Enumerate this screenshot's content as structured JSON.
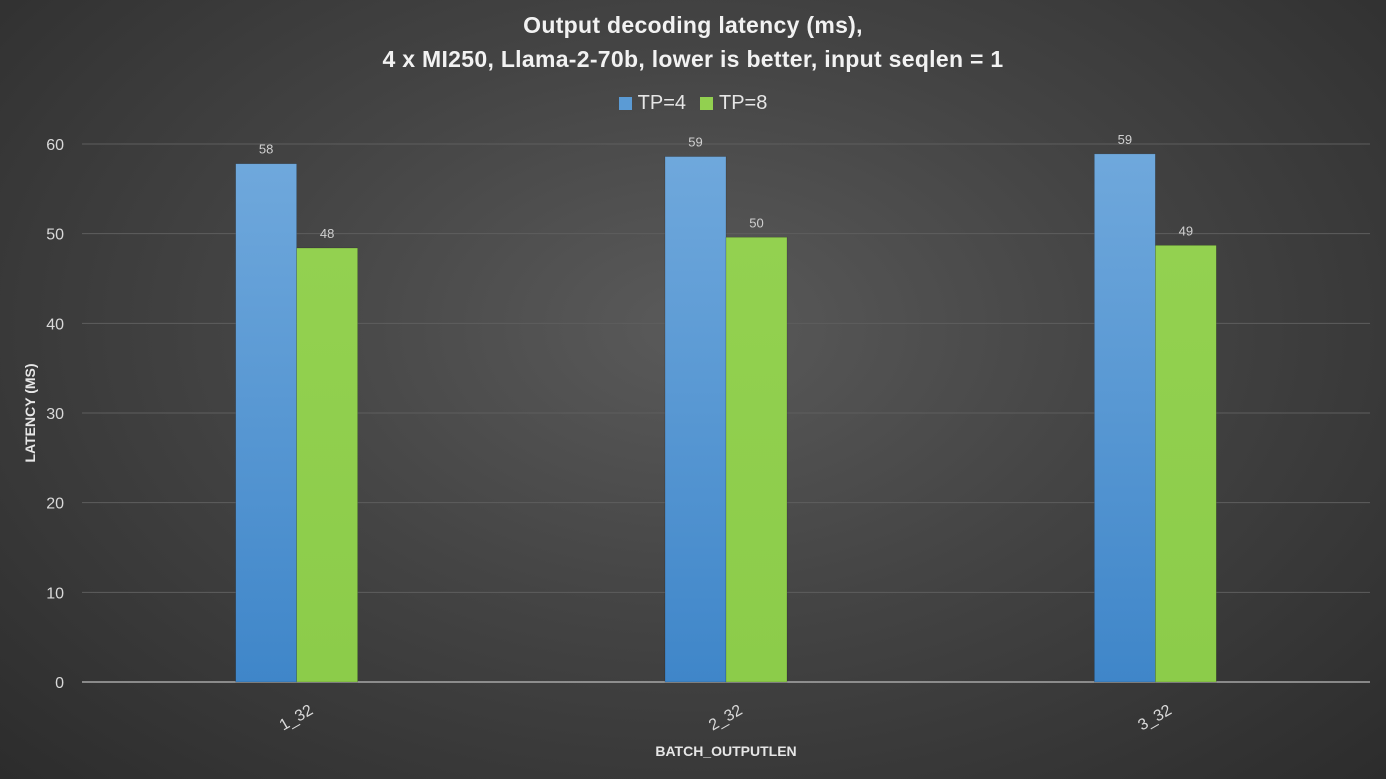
{
  "chart_data": {
    "type": "bar",
    "title": "Output decoding latency (ms),",
    "subtitle": "4 x MI250, Llama-2-70b, lower is better, input seqlen = 1",
    "xlabel": "BATCH_OUTPUTLEN",
    "ylabel": "LATENCY (MS)",
    "categories": [
      "1_32",
      "2_32",
      "3_32"
    ],
    "series": [
      {
        "name": "TP=4",
        "values": [
          57.8,
          58.6,
          58.9
        ],
        "labels": [
          "58",
          "59",
          "59"
        ],
        "color": "#5b9bd5"
      },
      {
        "name": "TP=8",
        "values": [
          48.4,
          49.6,
          48.7
        ],
        "labels": [
          "48",
          "50",
          "49"
        ],
        "color": "#92d050"
      }
    ],
    "ylim": [
      0,
      60
    ],
    "yticks": [
      "0",
      "10",
      "20",
      "30",
      "40",
      "50",
      "60"
    ],
    "grid": true,
    "legend_position": "top-center"
  }
}
